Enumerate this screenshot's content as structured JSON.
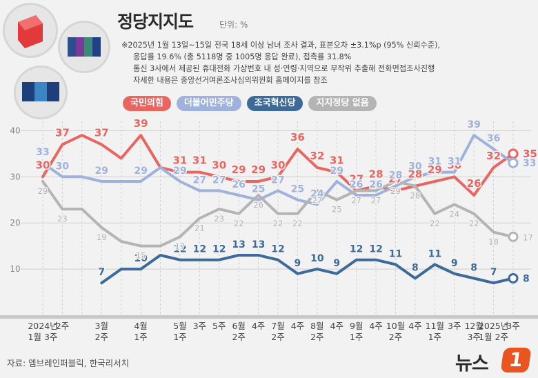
{
  "title": "정당지지도",
  "unit": "단위: %",
  "notes": [
    "※2025년 1월 13일~15일 전국 18세 이상 남녀 조사 결과, 표본오차 ±3.1%p (95% 신뢰수준),",
    "응답률 19.6% (총 5118명 중 1005명 응답 완료), 접촉률 31.8%",
    "통신 3사에서 제공된 휴대전화 가상번호 내 성·연령·지역으로 무작위 추출해 전화면접조사진행",
    "자세한 내용은 중앙선거여론조사심의위원회 홈페이지를 참조"
  ],
  "source": "자료: 엠브레인퍼블릭, 한국리서치",
  "logo_text": "뉴스",
  "logo_mark": "1",
  "chart_data": {
    "type": "line",
    "ylim": [
      0,
      42
    ],
    "yticks": [
      10,
      20,
      30,
      40
    ],
    "grid": true,
    "legend_position": "top",
    "x": [
      "2024년\n1월 3주",
      "2주",
      "",
      "3월\n2주",
      "",
      "4월\n1주",
      "",
      "5월\n1주",
      "3주",
      "5주",
      "6월\n2주",
      "4주",
      "7월\n2주",
      "4주",
      "8월\n2주",
      "4주",
      "9월\n1주",
      "4주",
      "10월\n2주",
      "4주",
      "11월\n1주",
      "3주",
      "12월\n3주",
      "2025년\n1월 2주",
      "3주"
    ],
    "series": [
      {
        "name": "국민의힘",
        "color": "#e8665f",
        "values": [
          30,
          37,
          39,
          37,
          34,
          39,
          32,
          31,
          31,
          30,
          29,
          29,
          30,
          36,
          32,
          31,
          27,
          28,
          27,
          28,
          29,
          30,
          26,
          32,
          35
        ]
      },
      {
        "name": "더불어민주당",
        "color": "#9fb2dd",
        "values": [
          33,
          30,
          30,
          29,
          29,
          29,
          32,
          29,
          27,
          27,
          26,
          25,
          27,
          25,
          24,
          29,
          26,
          26,
          28,
          30,
          31,
          31,
          39,
          36,
          33
        ]
      },
      {
        "name": "조국혁신당",
        "color": "#3d6a9a",
        "values": [
          null,
          null,
          null,
          7,
          10,
          10,
          13,
          12,
          12,
          12,
          13,
          13,
          12,
          9,
          10,
          9,
          12,
          12,
          11,
          8,
          11,
          9,
          8,
          7,
          8
        ]
      },
      {
        "name": "지지정당 없음",
        "color": "#b4b4b4",
        "values": [
          29,
          23,
          23,
          19,
          16,
          15,
          15,
          17,
          21,
          23,
          22,
          26,
          22,
          22,
          27,
          25,
          27,
          27,
          29,
          28,
          22,
          24,
          22,
          18,
          17
        ]
      }
    ],
    "data_labels": {
      "국민의힘": [
        30,
        37,
        null,
        37,
        null,
        39,
        null,
        31,
        31,
        30,
        29,
        29,
        30,
        36,
        32,
        31,
        27,
        28,
        27,
        28,
        29,
        30,
        26,
        32,
        35
      ],
      "더불어민주당": [
        33,
        30,
        null,
        29,
        null,
        29,
        null,
        29,
        27,
        27,
        26,
        25,
        27,
        25,
        24,
        29,
        26,
        26,
        28,
        30,
        31,
        31,
        39,
        36,
        33
      ],
      "조국혁신당": [
        null,
        null,
        null,
        7,
        null,
        10,
        null,
        12,
        12,
        12,
        13,
        13,
        12,
        9,
        10,
        9,
        12,
        12,
        11,
        8,
        11,
        9,
        8,
        7,
        8
      ],
      "지지정당 없음": [
        29,
        23,
        null,
        19,
        null,
        15,
        null,
        17,
        21,
        23,
        22,
        26,
        22,
        22,
        27,
        25,
        27,
        27,
        29,
        28,
        22,
        24,
        22,
        18,
        17
      ]
    }
  }
}
